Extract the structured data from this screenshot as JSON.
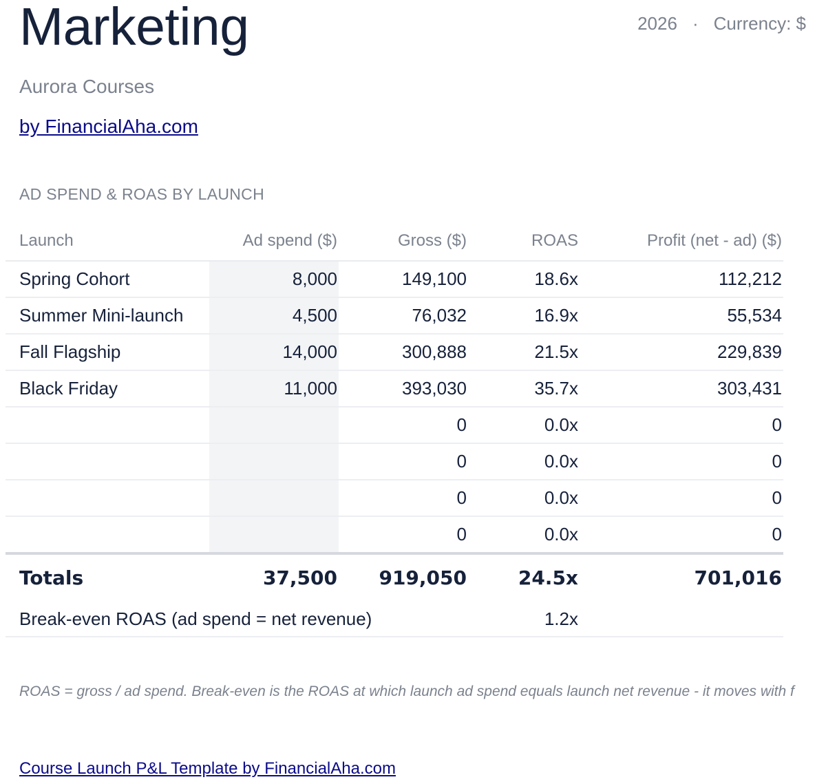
{
  "header": {
    "title": "Marketing",
    "year": "2026",
    "separator": "·",
    "currency": "Currency: $",
    "company": "Aurora Courses",
    "byline": "by FinancialAha.com"
  },
  "section": {
    "heading": "AD SPEND & ROAS BY LAUNCH"
  },
  "table": {
    "columns": [
      "Launch",
      "Ad spend ($)",
      "Gross ($)",
      "ROAS",
      "Profit (net - ad) ($)"
    ],
    "rows": [
      {
        "launch": "Spring Cohort",
        "ad_spend": "8,000",
        "gross": "149,100",
        "roas": "18.6x",
        "profit": "112,212"
      },
      {
        "launch": "Summer Mini-launch",
        "ad_spend": "4,500",
        "gross": "76,032",
        "roas": "16.9x",
        "profit": "55,534"
      },
      {
        "launch": "Fall Flagship",
        "ad_spend": "14,000",
        "gross": "300,888",
        "roas": "21.5x",
        "profit": "229,839"
      },
      {
        "launch": "Black Friday",
        "ad_spend": "11,000",
        "gross": "393,030",
        "roas": "35.7x",
        "profit": "303,431"
      },
      {
        "launch": "",
        "ad_spend": "",
        "gross": "0",
        "roas": "0.0x",
        "profit": "0"
      },
      {
        "launch": "",
        "ad_spend": "",
        "gross": "0",
        "roas": "0.0x",
        "profit": "0"
      },
      {
        "launch": "",
        "ad_spend": "",
        "gross": "0",
        "roas": "0.0x",
        "profit": "0"
      },
      {
        "launch": "",
        "ad_spend": "",
        "gross": "0",
        "roas": "0.0x",
        "profit": "0"
      }
    ],
    "totals": {
      "label": "Totals",
      "ad_spend": "37,500",
      "gross": "919,050",
      "roas": "24.5x",
      "profit": "701,016"
    },
    "breakeven": {
      "label": "Break-even ROAS (ad spend = net revenue)",
      "roas": "1.2x"
    }
  },
  "footnote": "ROAS = gross / ad spend. Break-even is the ROAS at which launch ad spend equals launch net revenue - it moves with f",
  "footer_link": "Course Launch P&L Template by FinancialAha.com",
  "colors": {
    "title": "#16213a",
    "muted": "#7b828d",
    "link": "#0b0b8a",
    "shade": "#f3f4f6"
  }
}
